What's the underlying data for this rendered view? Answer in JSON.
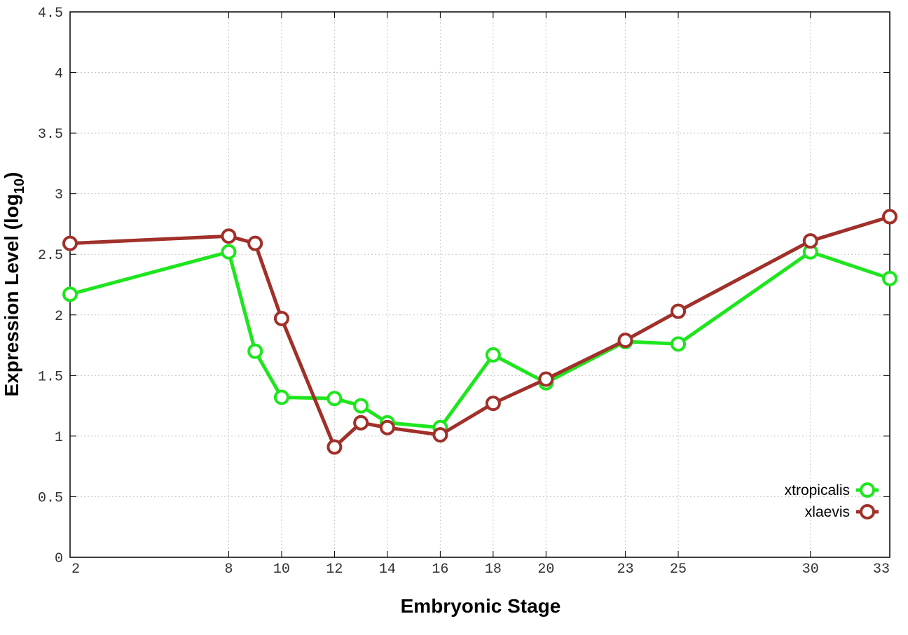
{
  "chart_data": {
    "type": "line",
    "title": "",
    "xlabel": "Embryonic Stage",
    "ylabel": "Expression Level (log",
    "ylabel_subscript": "10",
    "ylabel_close": ")",
    "x": [
      2,
      8,
      9,
      10,
      12,
      13,
      14,
      16,
      18,
      20,
      23,
      25,
      30,
      33
    ],
    "x_ticks": [
      {
        "value": 2,
        "label": "2"
      },
      {
        "value": 8,
        "label": "8"
      },
      {
        "value": 10,
        "label": "10"
      },
      {
        "value": 12,
        "label": "12"
      },
      {
        "value": 14,
        "label": "14"
      },
      {
        "value": 16,
        "label": "16"
      },
      {
        "value": 18,
        "label": "18"
      },
      {
        "value": 20,
        "label": "20"
      },
      {
        "value": 23,
        "label": "23"
      },
      {
        "value": 25,
        "label": "25"
      },
      {
        "value": 30,
        "label": "30"
      },
      {
        "value": 33,
        "label": "33"
      }
    ],
    "y_ticks": [
      {
        "value": 0,
        "label": "0"
      },
      {
        "value": 0.5,
        "label": "0.5"
      },
      {
        "value": 1,
        "label": "1"
      },
      {
        "value": 1.5,
        "label": "1.5"
      },
      {
        "value": 2,
        "label": "2"
      },
      {
        "value": 2.5,
        "label": "2.5"
      },
      {
        "value": 3,
        "label": "3"
      },
      {
        "value": 3.5,
        "label": "3.5"
      },
      {
        "value": 4,
        "label": "4"
      },
      {
        "value": 4.5,
        "label": "4.5"
      }
    ],
    "xlim": [
      2,
      33
    ],
    "ylim": [
      0,
      4.5
    ],
    "grid": true,
    "legend_position": "bottom-right",
    "series": [
      {
        "name": "xtropicalis",
        "color": "#1ee61e",
        "values": [
          2.17,
          2.52,
          1.7,
          1.32,
          1.31,
          1.25,
          1.11,
          1.07,
          1.67,
          1.44,
          1.78,
          1.76,
          2.52,
          2.3
        ]
      },
      {
        "name": "xlaevis",
        "color": "#a0302a",
        "values": [
          2.59,
          2.65,
          2.59,
          1.97,
          0.91,
          1.11,
          1.07,
          1.01,
          1.27,
          1.47,
          1.79,
          2.03,
          2.61,
          2.81
        ]
      }
    ]
  }
}
